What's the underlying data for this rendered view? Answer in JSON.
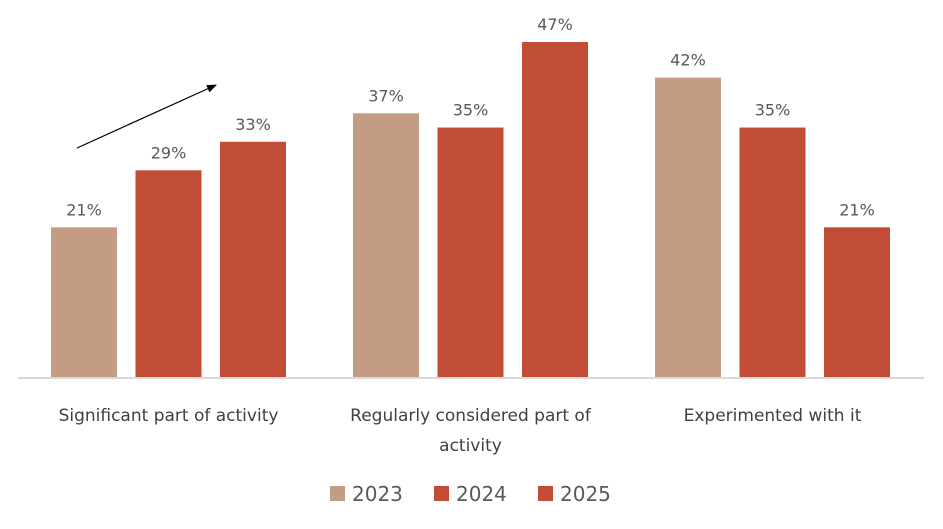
{
  "chart_data": {
    "type": "bar",
    "title": "",
    "xlabel": "",
    "ylabel": "",
    "ylim": [
      0,
      47
    ],
    "grid": false,
    "legend_position": "bottom",
    "categories": [
      [
        "Significant part of activity"
      ],
      [
        "Regularly considered part of",
        "activity"
      ],
      [
        "Experimented with it"
      ]
    ],
    "series": [
      {
        "name": "2023",
        "color": "#C39C83",
        "values": [
          21,
          37,
          42
        ],
        "labels": [
          "21%",
          "37%",
          "42%"
        ]
      },
      {
        "name": "2024",
        "color": "#C14D36",
        "values": [
          29,
          35,
          35
        ],
        "labels": [
          "29%",
          "35%",
          "35%"
        ]
      },
      {
        "name": "2025",
        "color": "#C14D36",
        "values": [
          33,
          47,
          21
        ],
        "labels": [
          "33%",
          "47%",
          "21%"
        ]
      }
    ],
    "annotations": [
      {
        "type": "arrow",
        "description": "upward trend arrow over first category",
        "icon": "arrow-up-right-icon"
      }
    ],
    "axis_color": "#D9D9D9"
  }
}
